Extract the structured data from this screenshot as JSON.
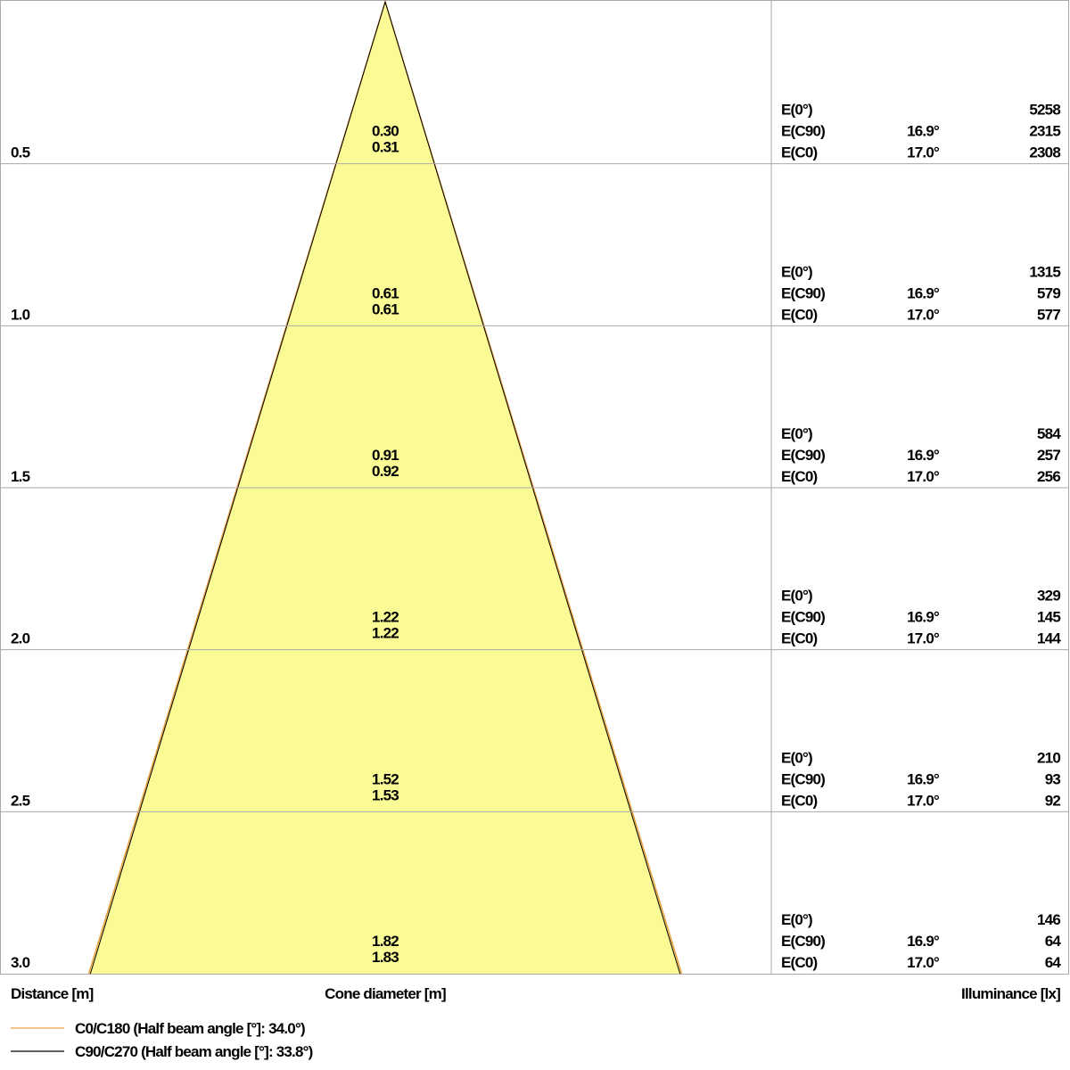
{
  "chart_data": {
    "type": "cone",
    "x_label": "Distance [m]",
    "center_label": "Cone diameter [m]",
    "right_label": "Illuminance [lx]",
    "row_labels": [
      "E(0°)",
      "E(C90)",
      "E(C0)"
    ],
    "ylim": [
      0,
      3
    ],
    "rows": [
      {
        "distance": 0.5,
        "c90_diameter": {
          "value": 0.3,
          "label": "0.30"
        },
        "c0_diameter": 0.31,
        "e0": 5258,
        "angle_c90": {
          "value": 16.9,
          "label": "16.9°"
        },
        "e_c90": 2315,
        "angle_c0": {
          "value": 17,
          "label": "17.0°"
        },
        "e_c0": 2308
      },
      {
        "distance": {
          "value": 1,
          "label": "1.0"
        },
        "c90_diameter": 0.61,
        "c0_diameter": 0.61,
        "e0": 1315,
        "angle_c90": {
          "value": 16.9,
          "label": "16.9°"
        },
        "e_c90": 579,
        "angle_c0": {
          "value": 17,
          "label": "17.0°"
        },
        "e_c0": 577
      },
      {
        "distance": 1.5,
        "c90_diameter": 0.91,
        "c0_diameter": 0.92,
        "e0": 584,
        "angle_c90": {
          "value": 16.9,
          "label": "16.9°"
        },
        "e_c90": 257,
        "angle_c0": {
          "value": 17,
          "label": "17.0°"
        },
        "e_c0": 256
      },
      {
        "distance": {
          "value": 2,
          "label": "2.0"
        },
        "c90_diameter": 1.22,
        "c0_diameter": 1.22,
        "e0": 329,
        "angle_c90": {
          "value": 16.9,
          "label": "16.9°"
        },
        "e_c90": 145,
        "angle_c0": {
          "value": 17,
          "label": "17.0°"
        },
        "e_c0": 144
      },
      {
        "distance": 2.5,
        "c90_diameter": 1.52,
        "c0_diameter": 1.53,
        "e0": 210,
        "angle_c90": {
          "value": 16.9,
          "label": "16.9°"
        },
        "e_c90": 93,
        "angle_c0": {
          "value": 17,
          "label": "17.0°"
        },
        "e_c0": 92
      },
      {
        "distance": {
          "value": 3,
          "label": "3.0"
        },
        "c90_diameter": 1.82,
        "c0_diameter": 1.83,
        "e0": 146,
        "angle_c90": {
          "value": 16.9,
          "label": "16.9°"
        },
        "e_c90": 64,
        "angle_c0": {
          "value": 17,
          "label": "17.0°"
        },
        "e_c0": 64
      }
    ],
    "fill_color": "#fbfb96",
    "series": [
      {
        "name": "C0/C180 (Half beam angle [°]: 34.0°)",
        "color": "#e8a040"
      },
      {
        "name": "C90/C270 (Half beam angle [°]: 33.8°)",
        "color": "#000000"
      }
    ]
  }
}
